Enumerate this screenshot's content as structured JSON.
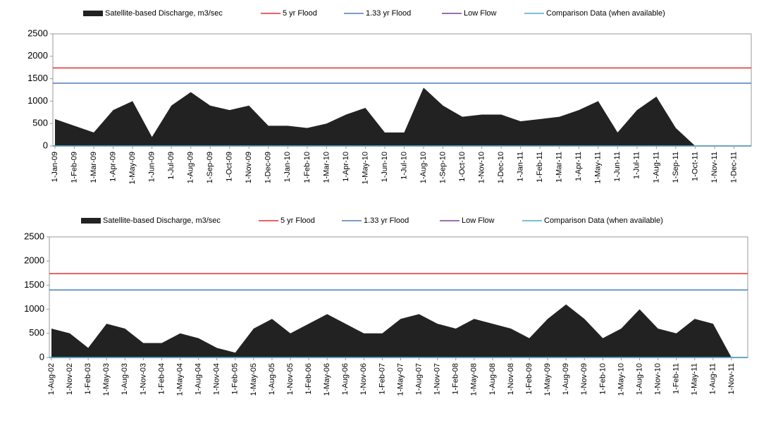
{
  "chart_data": [
    {
      "type": "area",
      "categories": [
        "1-Jan-09",
        "1-Feb-09",
        "1-Mar-09",
        "1-Apr-09",
        "1-May-09",
        "1-Jun-09",
        "1-Jul-09",
        "1-Aug-09",
        "1-Sep-09",
        "1-Oct-09",
        "1-Nov-09",
        "1-Dec-09",
        "1-Jan-10",
        "1-Feb-10",
        "1-Mar-10",
        "1-Apr-10",
        "1-May-10",
        "1-Jun-10",
        "1-Jul-10",
        "1-Aug-10",
        "1-Sep-10",
        "1-Oct-10",
        "1-Nov-10",
        "1-Dec-10",
        "1-Jan-11",
        "1-Feb-11",
        "1-Mar-11",
        "1-Apr-11",
        "1-May-11",
        "1-Jun-11",
        "1-Jul-11",
        "1-Aug-11",
        "1-Sep-11",
        "1-Oct-11",
        "1-Nov-11",
        "1-Dec-11"
      ],
      "series": [
        {
          "name": "Satellite-based Discharge, m3/sec",
          "color": "#222222",
          "values": [
            600,
            450,
            300,
            800,
            1000,
            200,
            900,
            1200,
            900,
            800,
            900,
            450,
            450,
            400,
            500,
            700,
            850,
            300,
            300,
            1300,
            900,
            650,
            700,
            700,
            550,
            600,
            650,
            800,
            1000,
            300,
            800,
            1100,
            400,
            0,
            0,
            0
          ]
        }
      ],
      "reference_lines": [
        {
          "name": "5 yr Flood",
          "color": "#e03030",
          "value": 1740
        },
        {
          "name": "1.33 yr Flood",
          "color": "#4a7ebb",
          "value": 1400
        },
        {
          "name": "Low Flow",
          "color": "#7f3f98",
          "value": 0
        },
        {
          "name": "Comparison Data (when available)",
          "color": "#4bacc6",
          "value": 0
        }
      ],
      "ylim": [
        0,
        2500
      ],
      "yticks": [
        0,
        500,
        1000,
        1500,
        2000,
        2500
      ]
    },
    {
      "type": "area",
      "categories": [
        "1-Aug-02",
        "1-Nov-02",
        "1-Feb-03",
        "1-May-03",
        "1-Aug-03",
        "1-Nov-03",
        "1-Feb-04",
        "1-May-04",
        "1-Aug-04",
        "1-Nov-04",
        "1-Feb-05",
        "1-May-05",
        "1-Aug-05",
        "1-Nov-05",
        "1-Feb-06",
        "1-May-06",
        "1-Aug-06",
        "1-Nov-06",
        "1-Feb-07",
        "1-May-07",
        "1-Aug-07",
        "1-Nov-07",
        "1-Feb-08",
        "1-May-08",
        "1-Aug-08",
        "1-Nov-08",
        "1-Feb-09",
        "1-May-09",
        "1-Aug-09",
        "1-Nov-09",
        "1-Feb-10",
        "1-May-10",
        "1-Aug-10",
        "1-Nov-10",
        "1-Feb-11",
        "1-May-11",
        "1-Aug-11",
        "1-Nov-11"
      ],
      "series": [
        {
          "name": "Satellite-based Discharge, m3/sec",
          "color": "#222222",
          "values": [
            600,
            500,
            200,
            700,
            600,
            300,
            300,
            500,
            400,
            200,
            100,
            600,
            800,
            500,
            700,
            900,
            700,
            500,
            500,
            800,
            900,
            700,
            600,
            800,
            700,
            600,
            400,
            800,
            1100,
            800,
            400,
            600,
            1000,
            600,
            500,
            800,
            700,
            0
          ]
        }
      ],
      "reference_lines": [
        {
          "name": "5 yr Flood",
          "color": "#e03030",
          "value": 1740
        },
        {
          "name": "1.33 yr Flood",
          "color": "#4a7ebb",
          "value": 1400
        },
        {
          "name": "Low Flow",
          "color": "#7f3f98",
          "value": 0
        },
        {
          "name": "Comparison Data (when available)",
          "color": "#4bacc6",
          "value": 0
        }
      ],
      "ylim": [
        0,
        2500
      ],
      "yticks": [
        0,
        500,
        1000,
        1500,
        2000,
        2500
      ]
    }
  ]
}
